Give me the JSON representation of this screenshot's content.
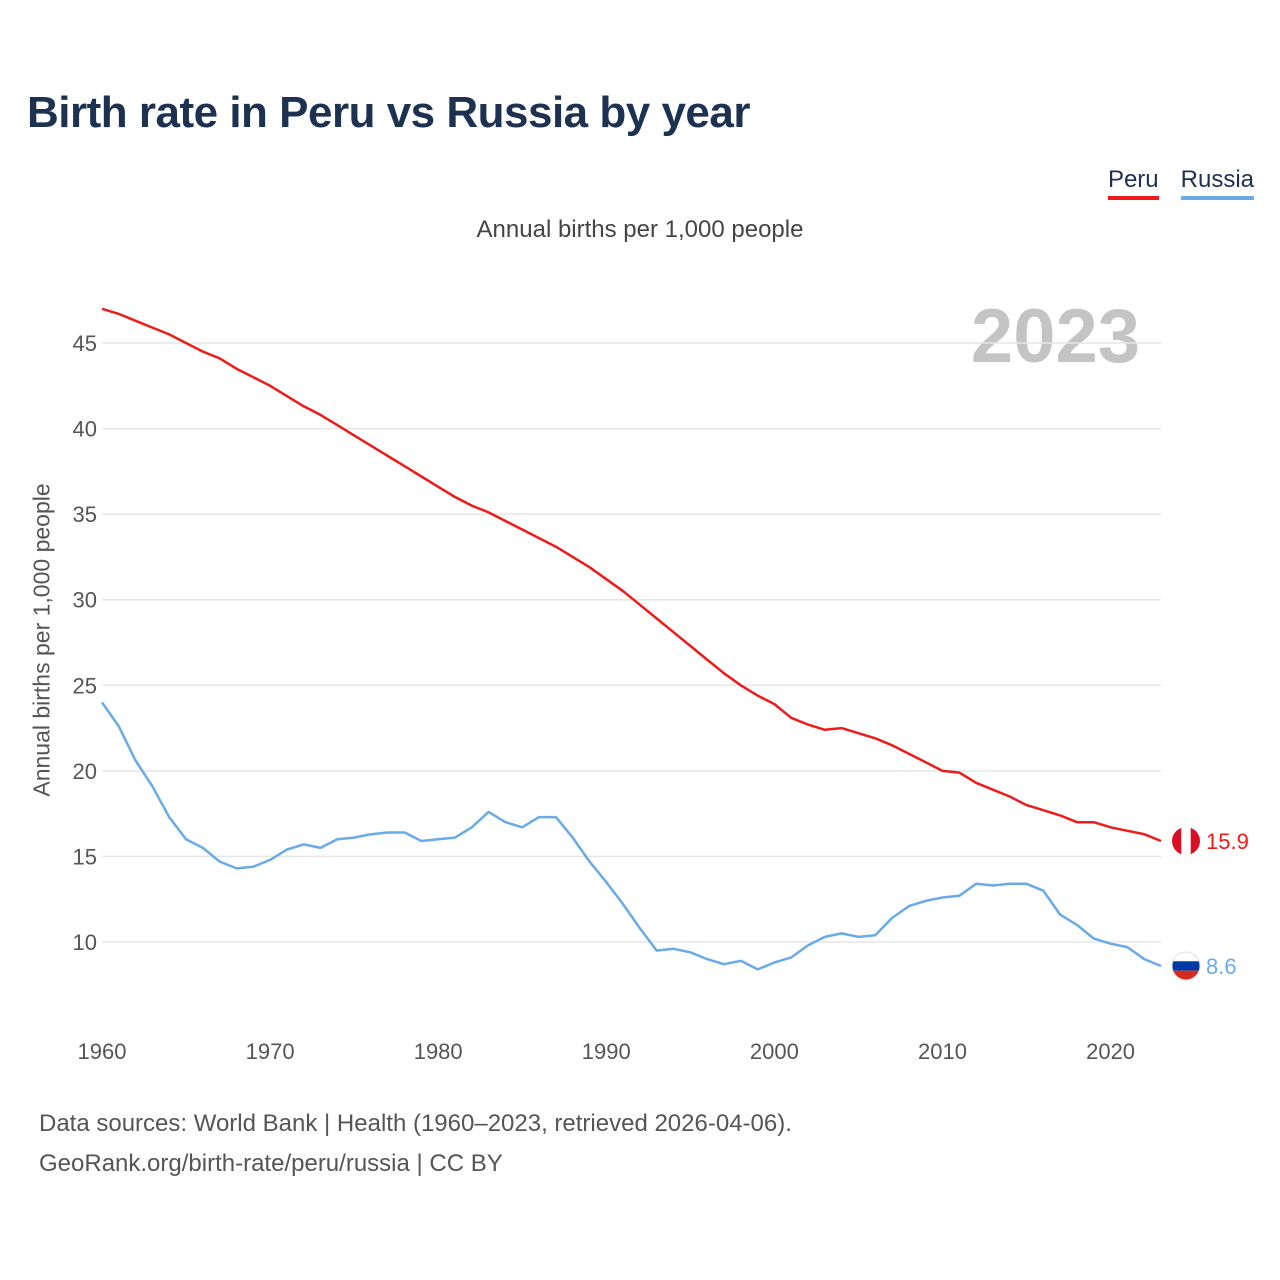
{
  "title": "Birth rate in Peru vs Russia by year",
  "subtitle": "Annual births per 1,000 people",
  "legend": {
    "peru": "Peru",
    "russia": "Russia"
  },
  "colors": {
    "peru": "#ee1b1b",
    "russia": "#6aaae7",
    "year_watermark": "#c4c4c4",
    "grid": "#e6e6e6",
    "tick": "#555555"
  },
  "footer": {
    "line1": "Data sources: World Bank | Health (1960–2023, retrieved 2026-04-06).",
    "line2": "GeoRank.org/birth-rate/peru/russia | CC BY"
  },
  "chart_data": {
    "type": "line",
    "title": "Birth rate in Peru vs Russia by year",
    "xlabel": "",
    "ylabel": "Annual births per 1,000 people",
    "year_label": "2023",
    "xlim": [
      1960,
      2023
    ],
    "ylim": [
      5.5,
      48
    ],
    "yticks": [
      10,
      15,
      20,
      25,
      30,
      35,
      40,
      45
    ],
    "xticks": [
      1960,
      1970,
      1980,
      1990,
      2000,
      2010,
      2020
    ],
    "grid": true,
    "legend_position": "top-right",
    "x": [
      1960,
      1961,
      1962,
      1963,
      1964,
      1965,
      1966,
      1967,
      1968,
      1969,
      1970,
      1971,
      1972,
      1973,
      1974,
      1975,
      1976,
      1977,
      1978,
      1979,
      1980,
      1981,
      1982,
      1983,
      1984,
      1985,
      1986,
      1987,
      1988,
      1989,
      1990,
      1991,
      1992,
      1993,
      1994,
      1995,
      1996,
      1997,
      1998,
      1999,
      2000,
      2001,
      2002,
      2003,
      2004,
      2005,
      2006,
      2007,
      2008,
      2009,
      2010,
      2011,
      2012,
      2013,
      2014,
      2015,
      2016,
      2017,
      2018,
      2019,
      2020,
      2021,
      2022,
      2023
    ],
    "series": [
      {
        "name": "Peru",
        "end_label": "15.9",
        "values": [
          47.0,
          46.7,
          46.3,
          45.9,
          45.5,
          45.0,
          44.5,
          44.1,
          43.5,
          43.0,
          42.5,
          41.9,
          41.3,
          40.8,
          40.2,
          39.6,
          39.0,
          38.4,
          37.8,
          37.2,
          36.6,
          36.0,
          35.5,
          35.1,
          34.6,
          34.1,
          33.6,
          33.1,
          32.5,
          31.9,
          31.2,
          30.5,
          29.7,
          28.9,
          28.1,
          27.3,
          26.5,
          25.7,
          25.0,
          24.4,
          23.9,
          23.1,
          22.7,
          22.4,
          22.5,
          22.2,
          21.9,
          21.5,
          21.0,
          20.5,
          20.0,
          19.9,
          19.3,
          18.9,
          18.5,
          18.0,
          17.7,
          17.4,
          17.0,
          17.0,
          16.7,
          16.5,
          16.3,
          15.9
        ]
      },
      {
        "name": "Russia",
        "end_label": "8.6",
        "values": [
          24.0,
          22.6,
          20.6,
          19.1,
          17.3,
          16.0,
          15.5,
          14.7,
          14.3,
          14.4,
          14.8,
          15.4,
          15.7,
          15.5,
          16.0,
          16.1,
          16.3,
          16.4,
          16.4,
          15.9,
          16.0,
          16.1,
          16.7,
          17.6,
          17.0,
          16.7,
          17.3,
          17.3,
          16.1,
          14.7,
          13.5,
          12.2,
          10.8,
          9.5,
          9.6,
          9.4,
          9.0,
          8.7,
          8.9,
          8.4,
          8.8,
          9.1,
          9.8,
          10.3,
          10.5,
          10.3,
          10.4,
          11.4,
          12.1,
          12.4,
          12.6,
          12.7,
          13.4,
          13.3,
          13.4,
          13.4,
          13.0,
          11.6,
          11.0,
          10.2,
          9.9,
          9.7,
          9.0,
          8.6
        ]
      }
    ]
  }
}
